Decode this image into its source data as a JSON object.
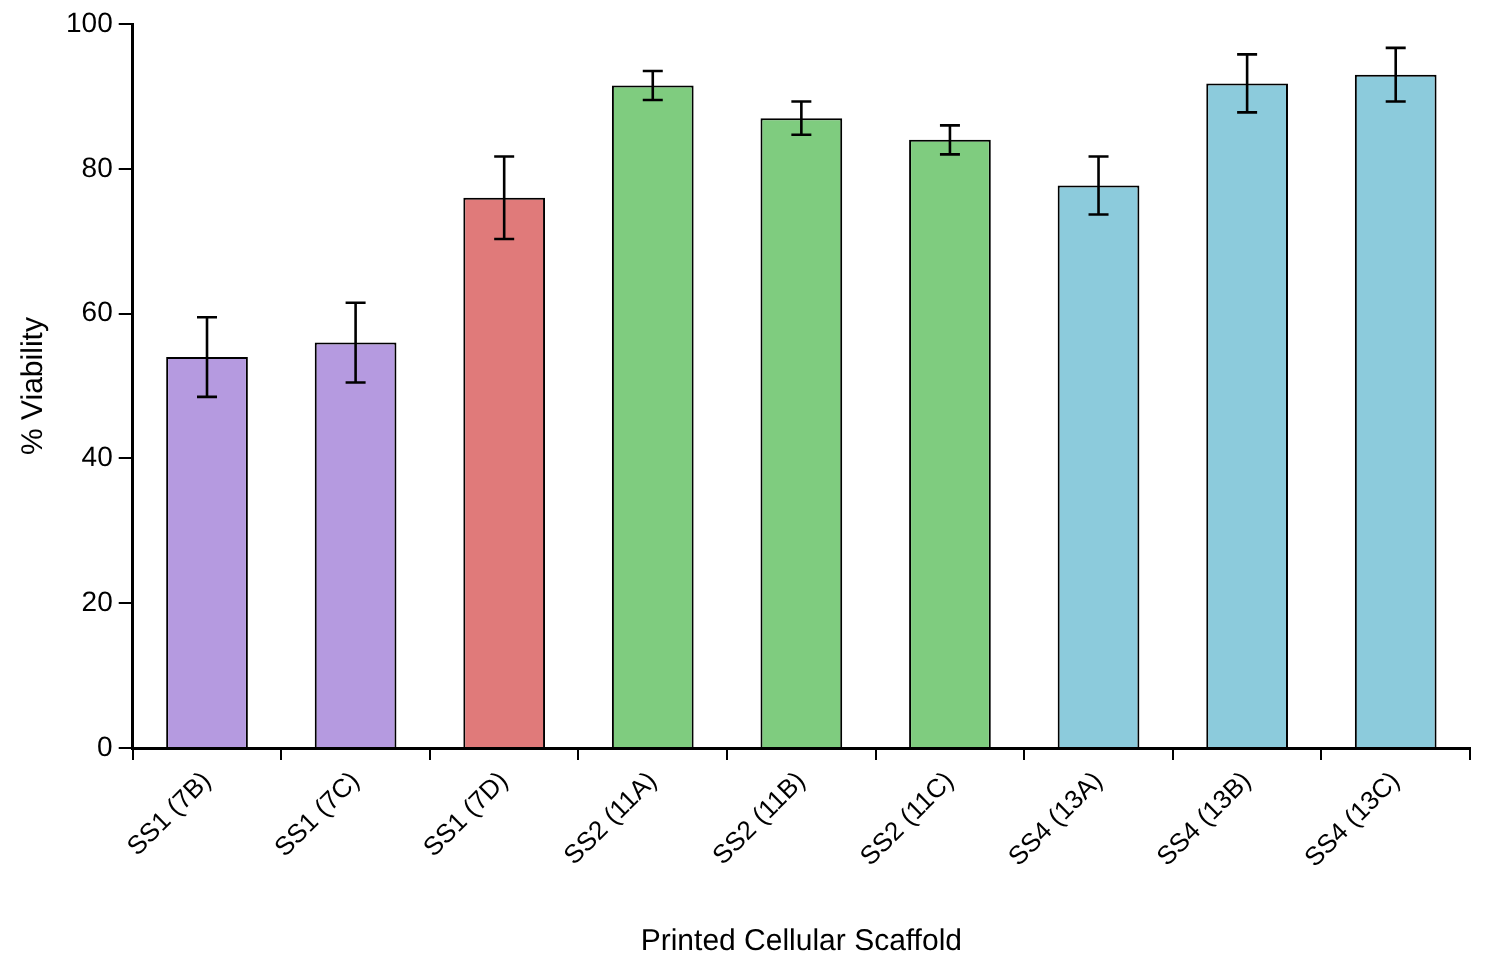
{
  "chart_data": {
    "type": "bar",
    "xlabel": "Printed Cellular Scaffold",
    "ylabel": "% Viability",
    "categories": [
      "SS1 (7B)",
      "SS1 (7C)",
      "SS1 (7D)",
      "SS2 (11A)",
      "SS2 (11B)",
      "SS2 (11C)",
      "SS4 (13A)",
      "SS4 (13B)",
      "SS4 (13C)"
    ],
    "values": [
      54,
      56,
      76,
      91.5,
      87,
      84,
      77.7,
      91.8,
      93
    ],
    "errors": [
      5.5,
      5.5,
      5.7,
      2,
      2.3,
      2,
      4,
      4,
      3.7
    ],
    "colors": [
      "#b59ae0",
      "#b59ae0",
      "#e07a7a",
      "#7fcc7f",
      "#7fcc7f",
      "#7fcc7f",
      "#8ccbdc",
      "#8ccbdc",
      "#8ccbdc"
    ],
    "ylim": [
      0,
      100
    ],
    "yticks": [
      0,
      20,
      40,
      60,
      80,
      100
    ],
    "grid": false,
    "legend": false
  }
}
